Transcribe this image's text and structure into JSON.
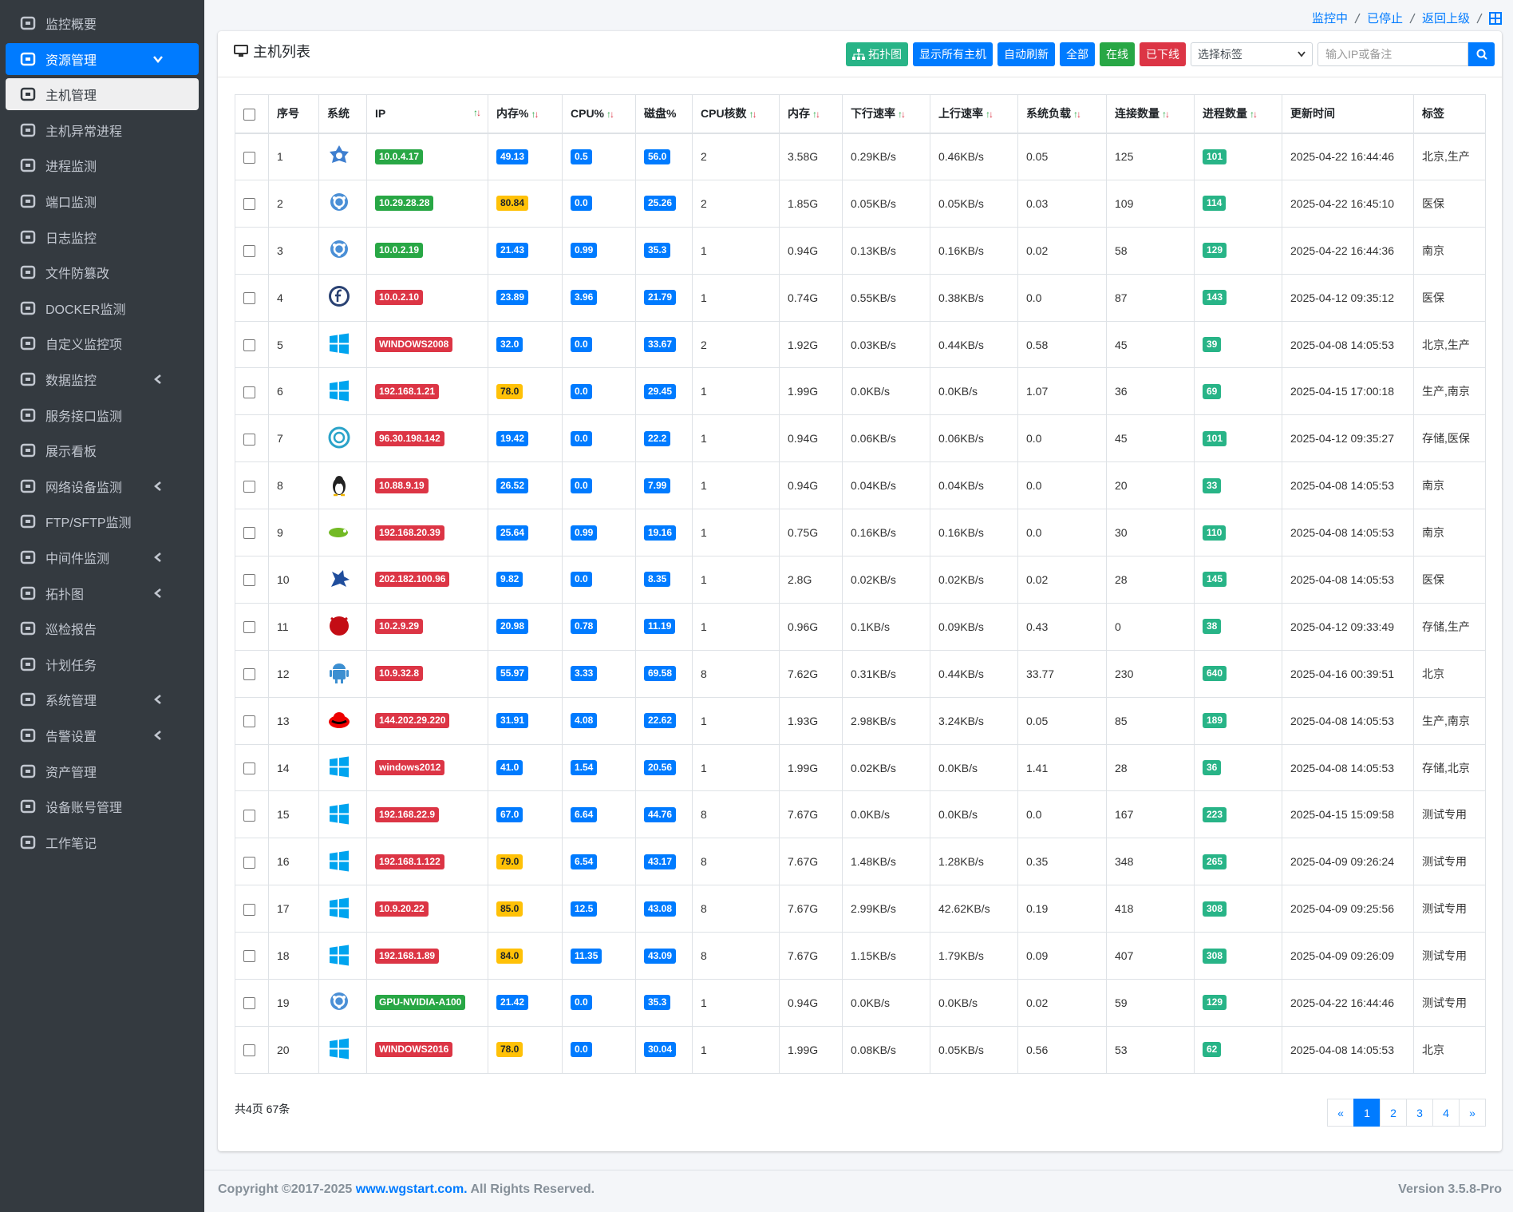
{
  "sidebar": {
    "items": [
      {
        "label": "监控概要"
      },
      {
        "label": "资源管理",
        "expandable": true,
        "open": true
      },
      {
        "label": "主机管理",
        "current": true
      },
      {
        "label": "主机异常进程"
      },
      {
        "label": "进程监测"
      },
      {
        "label": "端口监测"
      },
      {
        "label": "日志监控"
      },
      {
        "label": "文件防篡改"
      },
      {
        "label": "DOCKER监测"
      },
      {
        "label": "自定义监控项"
      },
      {
        "label": "数据监控",
        "expandable": true
      },
      {
        "label": "服务接口监测"
      },
      {
        "label": "展示看板"
      },
      {
        "label": "网络设备监测",
        "expandable": true
      },
      {
        "label": "FTP/SFTP监测"
      },
      {
        "label": "中间件监测",
        "expandable": true
      },
      {
        "label": "拓扑图",
        "expandable": true
      },
      {
        "label": "巡检报告"
      },
      {
        "label": "计划任务"
      },
      {
        "label": "系统管理",
        "expandable": true
      },
      {
        "label": "告警设置",
        "expandable": true
      },
      {
        "label": "资产管理"
      },
      {
        "label": "设备账号管理"
      },
      {
        "label": "工作笔记"
      }
    ]
  },
  "breadcrumb": [
    "监控中",
    "已停止",
    "返回上级"
  ],
  "card": {
    "title": "主机列表",
    "buttons": [
      {
        "label": "拓扑图",
        "color": "#28b487"
      },
      {
        "label": "显示所有主机",
        "color": "#007bff"
      },
      {
        "label": "自动刷新",
        "color": "#007bff"
      },
      {
        "label": "全部",
        "color": "#007bff"
      },
      {
        "label": "在线",
        "color": "#28a745"
      },
      {
        "label": "已下线",
        "color": "#dc3545"
      }
    ],
    "select_placeholder": "选择标签",
    "search_placeholder": "输入IP或备注"
  },
  "table": {
    "headers": [
      "序号",
      "系统",
      "IP",
      "内存%",
      "CPU%",
      "磁盘%",
      "CPU核数",
      "内存",
      "下行速率",
      "上行速率",
      "系统负载",
      "连接数量",
      "进程数量",
      "更新时间",
      "标签"
    ],
    "ip_colors": [
      "#28a745",
      "#28a745",
      "#28a745",
      "#dc3545",
      "#dc3545",
      "#dc3545",
      "#dc3545",
      "#dc3545",
      "#dc3545",
      "#dc3545",
      "#dc3545",
      "#dc3545",
      "#dc3545",
      "#dc3545",
      "#dc3545",
      "#dc3545",
      "#dc3545",
      "#dc3545",
      "#28a745",
      "#dc3545"
    ],
    "rows": [
      [
        "1",
        "10.0.4.17",
        "49.13",
        "0.5",
        "56.0",
        "2",
        "3.58G",
        "0.29KB/s",
        "0.46KB/s",
        "0.05",
        "125",
        "101",
        "2025-04-22 16:44:46",
        "北京,生产"
      ],
      [
        "2",
        "10.29.28.28",
        "80.84",
        "0.0",
        "25.26",
        "2",
        "1.85G",
        "0.05KB/s",
        "0.05KB/s",
        "0.03",
        "109",
        "114",
        "2025-04-22 16:45:10",
        "医保"
      ],
      [
        "3",
        "10.0.2.19",
        "21.43",
        "0.99",
        "35.3",
        "1",
        "0.94G",
        "0.13KB/s",
        "0.16KB/s",
        "0.02",
        "58",
        "129",
        "2025-04-22 16:44:36",
        "南京"
      ],
      [
        "4",
        "10.0.2.10",
        "23.89",
        "3.96",
        "21.79",
        "1",
        "0.74G",
        "0.55KB/s",
        "0.38KB/s",
        "0.0",
        "87",
        "143",
        "2025-04-12 09:35:12",
        "医保"
      ],
      [
        "5",
        "WINDOWS2008",
        "32.0",
        "0.0",
        "33.67",
        "2",
        "1.92G",
        "0.03KB/s",
        "0.44KB/s",
        "0.58",
        "45",
        "39",
        "2025-04-08 14:05:53",
        "北京,生产"
      ],
      [
        "6",
        "192.168.1.21",
        "78.0",
        "0.0",
        "29.45",
        "1",
        "1.99G",
        "0.0KB/s",
        "0.0KB/s",
        "1.07",
        "36",
        "69",
        "2025-04-15 17:00:18",
        "生产,南京"
      ],
      [
        "7",
        "96.30.198.142",
        "19.42",
        "0.0",
        "22.2",
        "1",
        "0.94G",
        "0.06KB/s",
        "0.06KB/s",
        "0.0",
        "45",
        "101",
        "2025-04-12 09:35:27",
        "存储,医保"
      ],
      [
        "8",
        "10.88.9.19",
        "26.52",
        "0.0",
        "7.99",
        "1",
        "0.94G",
        "0.04KB/s",
        "0.04KB/s",
        "0.0",
        "20",
        "33",
        "2025-04-08 14:05:53",
        "南京"
      ],
      [
        "9",
        "192.168.20.39",
        "25.64",
        "0.99",
        "19.16",
        "1",
        "0.75G",
        "0.16KB/s",
        "0.16KB/s",
        "0.0",
        "30",
        "110",
        "2025-04-08 14:05:53",
        "南京"
      ],
      [
        "10",
        "202.182.100.96",
        "9.82",
        "0.0",
        "8.35",
        "1",
        "2.8G",
        "0.02KB/s",
        "0.02KB/s",
        "0.02",
        "28",
        "145",
        "2025-04-08 14:05:53",
        "医保"
      ],
      [
        "11",
        "10.2.9.29",
        "20.98",
        "0.78",
        "11.19",
        "1",
        "0.96G",
        "0.1KB/s",
        "0.09KB/s",
        "0.43",
        "0",
        "38",
        "2025-04-12 09:33:49",
        "存储,生产"
      ],
      [
        "12",
        "10.9.32.8",
        "55.97",
        "3.33",
        "69.58",
        "8",
        "7.62G",
        "0.31KB/s",
        "0.44KB/s",
        "33.77",
        "230",
        "640",
        "2025-04-16 00:39:51",
        "北京"
      ],
      [
        "13",
        "144.202.29.220",
        "31.91",
        "4.08",
        "22.62",
        "1",
        "1.93G",
        "2.98KB/s",
        "3.24KB/s",
        "0.05",
        "85",
        "189",
        "2025-04-08 14:05:53",
        "生产,南京"
      ],
      [
        "14",
        "windows2012",
        "41.0",
        "1.54",
        "20.56",
        "1",
        "1.99G",
        "0.02KB/s",
        "0.0KB/s",
        "1.41",
        "28",
        "36",
        "2025-04-08 14:05:53",
        "存储,北京"
      ],
      [
        "15",
        "192.168.22.9",
        "67.0",
        "6.64",
        "44.76",
        "8",
        "7.67G",
        "0.0KB/s",
        "0.0KB/s",
        "0.0",
        "167",
        "223",
        "2025-04-15 15:09:58",
        "测试专用"
      ],
      [
        "16",
        "192.168.1.122",
        "79.0",
        "6.54",
        "43.17",
        "8",
        "7.67G",
        "1.48KB/s",
        "1.28KB/s",
        "0.35",
        "348",
        "265",
        "2025-04-09 09:26:24",
        "测试专用"
      ],
      [
        "17",
        "10.9.20.22",
        "85.0",
        "12.5",
        "43.08",
        "8",
        "7.67G",
        "2.99KB/s",
        "42.62KB/s",
        "0.19",
        "418",
        "308",
        "2025-04-09 09:25:56",
        "测试专用"
      ],
      [
        "18",
        "192.168.1.89",
        "84.0",
        "11.35",
        "43.09",
        "8",
        "7.67G",
        "1.15KB/s",
        "1.79KB/s",
        "0.09",
        "407",
        "308",
        "2025-04-09 09:26:09",
        "测试专用"
      ],
      [
        "19",
        "GPU-NVIDIA-A100",
        "21.42",
        "0.0",
        "35.3",
        "1",
        "0.94G",
        "0.0KB/s",
        "0.0KB/s",
        "0.02",
        "59",
        "129",
        "2025-04-22 16:44:46",
        "测试专用"
      ],
      [
        "20",
        "WINDOWS2016",
        "78.0",
        "0.0",
        "30.04",
        "1",
        "1.99G",
        "0.08KB/s",
        "0.05KB/s",
        "0.56",
        "53",
        "62",
        "2025-04-08 14:05:53",
        "北京"
      ]
    ]
  },
  "summary": "共4页 67条",
  "pagination": [
    "«",
    "1",
    "2",
    "3",
    "4",
    "»"
  ],
  "footer": {
    "copyright": "Copyright ©2017-2025 ",
    "link": "www.wgstart.com.",
    "rights": " All Rights Reserved.",
    "version": "Version 3.5.8-Pro"
  }
}
